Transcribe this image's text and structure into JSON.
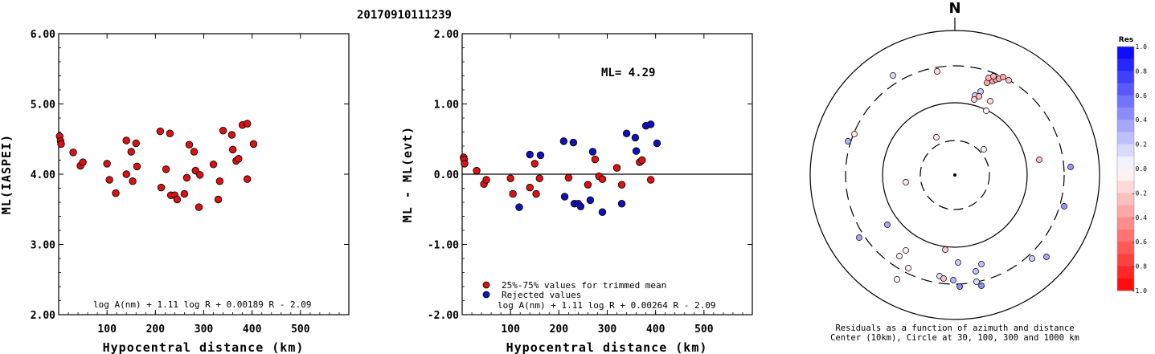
{
  "title": "20170910111239",
  "chart_data": [
    {
      "type": "scatter",
      "xlabel": "Hypocentral distance (km)",
      "ylabel": "ML(IASPEI)",
      "xlim": [
        0,
        600
      ],
      "ylim": [
        2.0,
        6.0
      ],
      "xticks": [
        "100",
        "200",
        "300",
        "400",
        "500"
      ],
      "yticks": [
        "2.00",
        "3.00",
        "4.00",
        "5.00",
        "6.00"
      ],
      "formula": "log A(nm) + 1.11 log R + 0.00189 R - 2.09",
      "series": [
        {
          "color": "#dd1111",
          "points": [
            [
              2,
              4.54
            ],
            [
              4,
              4.47
            ],
            [
              5,
              4.43
            ],
            [
              30,
              4.31
            ],
            [
              45,
              4.12
            ],
            [
              50,
              4.17
            ],
            [
              100,
              4.15
            ],
            [
              105,
              3.92
            ],
            [
              118,
              3.73
            ],
            [
              140,
              4.48
            ],
            [
              140,
              4.0
            ],
            [
              150,
              4.32
            ],
            [
              153,
              3.9
            ],
            [
              160,
              4.44
            ],
            [
              162,
              4.11
            ],
            [
              210,
              4.61
            ],
            [
              212,
              3.81
            ],
            [
              222,
              4.07
            ],
            [
              230,
              4.58
            ],
            [
              232,
              3.7
            ],
            [
              240,
              3.7
            ],
            [
              245,
              3.64
            ],
            [
              260,
              3.72
            ],
            [
              265,
              3.95
            ],
            [
              270,
              4.42
            ],
            [
              280,
              4.32
            ],
            [
              283,
              4.05
            ],
            [
              290,
              3.53
            ],
            [
              292,
              3.99
            ],
            [
              320,
              4.14
            ],
            [
              330,
              3.64
            ],
            [
              333,
              3.9
            ],
            [
              340,
              4.62
            ],
            [
              358,
              4.56
            ],
            [
              360,
              4.35
            ],
            [
              367,
              4.19
            ],
            [
              372,
              4.22
            ],
            [
              380,
              4.7
            ],
            [
              390,
              4.72
            ],
            [
              390,
              3.93
            ],
            [
              403,
              4.43
            ]
          ]
        }
      ]
    },
    {
      "type": "scatter",
      "xlabel": "Hypocentral distance (km)",
      "ylabel": "ML - ML(evt)",
      "xlim": [
        0,
        600
      ],
      "ylim": [
        -2.0,
        2.0
      ],
      "xticks": [
        "100",
        "200",
        "300",
        "400",
        "500"
      ],
      "yticks": [
        "-2.00",
        "-1.00",
        "0.00",
        "1.00",
        "2.00"
      ],
      "annotation": "ML= 4.29",
      "formula": "log A(nm) + 1.11 log R + 0.00264 R - 2.09",
      "legend": {
        "position": "bottom-left"
      },
      "series": [
        {
          "name": "25%-75% values for trimmed mean",
          "color": "#dd1111",
          "points": [
            [
              3,
              0.24
            ],
            [
              4,
              0.21
            ],
            [
              5,
              0.15
            ],
            [
              30,
              0.05
            ],
            [
              45,
              -0.14
            ],
            [
              50,
              -0.08
            ],
            [
              100,
              -0.06
            ],
            [
              105,
              -0.28
            ],
            [
              140,
              -0.19
            ],
            [
              150,
              0.15
            ],
            [
              153,
              -0.28
            ],
            [
              160,
              -0.06
            ],
            [
              220,
              -0.05
            ],
            [
              260,
              -0.15
            ],
            [
              275,
              0.21
            ],
            [
              283,
              -0.03
            ],
            [
              290,
              -0.07
            ],
            [
              320,
              0.09
            ],
            [
              330,
              -0.15
            ],
            [
              367,
              0.17
            ],
            [
              372,
              0.2
            ],
            [
              390,
              -0.08
            ]
          ]
        },
        {
          "name": "Rejected values",
          "color": "#1111bb",
          "points": [
            [
              118,
              -0.47
            ],
            [
              140,
              0.28
            ],
            [
              162,
              0.27
            ],
            [
              210,
              0.47
            ],
            [
              212,
              -0.32
            ],
            [
              230,
              0.45
            ],
            [
              232,
              -0.42
            ],
            [
              240,
              -0.42
            ],
            [
              245,
              -0.46
            ],
            [
              265,
              -0.37
            ],
            [
              270,
              0.32
            ],
            [
              290,
              -0.54
            ],
            [
              340,
              0.58
            ],
            [
              358,
              0.52
            ],
            [
              360,
              0.33
            ],
            [
              380,
              0.69
            ],
            [
              390,
              0.71
            ],
            [
              403,
              0.44
            ],
            [
              330,
              -0.42
            ]
          ]
        }
      ]
    },
    {
      "type": "scatter",
      "title": "N",
      "caption_line1": "Residuals as a function of azimuth and distance",
      "caption_line2": "Center (10km), Circle at 30, 100, 300 and 1000 km",
      "colorbar_title": "Res",
      "colorbar_ticks": [
        "1.0",
        "0.8",
        "0.6",
        "0.4",
        "0.2",
        "0.0",
        "-0.2",
        "-0.4",
        "-0.6",
        "-0.8",
        "-1.0"
      ],
      "points_dxdy": [
        [
          -22,
          -129,
          -0.15
        ],
        [
          -77,
          -124,
          0.15
        ],
        [
          40,
          -115,
          -0.35
        ],
        [
          47,
          -117,
          -0.35
        ],
        [
          51,
          -119,
          -0.4
        ],
        [
          42,
          -121,
          -0.3
        ],
        [
          55,
          -120,
          -0.35
        ],
        [
          60,
          -122,
          -0.35
        ],
        [
          67,
          -118,
          -0.25
        ],
        [
          48,
          -123,
          -0.3
        ],
        [
          25,
          -99,
          0.2
        ],
        [
          32,
          -104,
          0.2
        ],
        [
          30,
          -98,
          -0.25
        ],
        [
          24,
          -94,
          -0.2
        ],
        [
          44,
          -92,
          -0.15
        ],
        [
          39,
          -80,
          -0.05
        ],
        [
          -125,
          -51,
          -0.1
        ],
        [
          -133,
          -42,
          0.3
        ],
        [
          -23,
          -47,
          -0.1
        ],
        [
          36,
          -32,
          -0.05
        ],
        [
          105,
          -19,
          -0.25
        ],
        [
          144,
          -10,
          0.4
        ],
        [
          -61,
          9,
          -0.1
        ],
        [
          136,
          39,
          0.4
        ],
        [
          -84,
          62,
          0.35
        ],
        [
          -119,
          78,
          0.35
        ],
        [
          -12,
          93,
          -0.2
        ],
        [
          -61,
          94,
          -0.05
        ],
        [
          -58,
          116,
          -0.05
        ],
        [
          -69,
          101,
          -0.1
        ],
        [
          -72,
          130,
          -0.05
        ],
        [
          4,
          109,
          0.2
        ],
        [
          33,
          111,
          0.25
        ],
        [
          26,
          120,
          0.25
        ],
        [
          -19,
          126,
          0.15
        ],
        [
          -2,
          131,
          0.3
        ],
        [
          6,
          139,
          0.45
        ],
        [
          -14,
          129,
          -0.25
        ],
        [
          33,
          138,
          0.45
        ],
        [
          27,
          133,
          0.15
        ],
        [
          96,
          104,
          0.2
        ],
        [
          114,
          102,
          0.35
        ]
      ]
    }
  ]
}
